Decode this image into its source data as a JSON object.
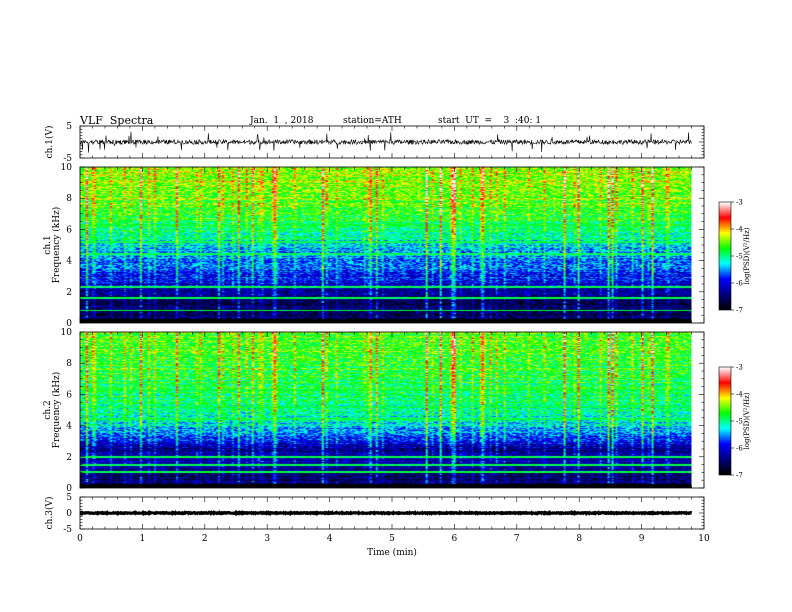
{
  "header": {
    "title": "VLF  Spectra",
    "date": "Jan.  1  , 2018",
    "station": "station=ATH",
    "start_ut": "start  UT  =    3  :40: 1"
  },
  "colors": {
    "waveform": "#000000",
    "axis": "#000000",
    "colormap": [
      "#000000",
      "#000080",
      "#0000ff",
      "#00ffff",
      "#00ff00",
      "#ffff00",
      "#ff0000",
      "#ffffff"
    ]
  },
  "chart_data": [
    {
      "type": "line",
      "panel": "ch1-waveform",
      "ylabel": "ch.1(V)",
      "ylim": [
        -5,
        5
      ],
      "yticks": [
        "5",
        "-5"
      ],
      "xlim": [
        0,
        10
      ],
      "data_extent_min": 9.8,
      "description_values": {
        "mean": 0,
        "typical_amplitude": 1.2,
        "spike_amplitude": 3
      }
    },
    {
      "type": "heatmap",
      "panel": "ch1-spectrogram",
      "ylabel": "ch.1\nFrequency  (kHz)",
      "ylim": [
        0,
        10
      ],
      "yticks": [
        "0",
        "2",
        "4",
        "6",
        "8",
        "10"
      ],
      "xlim": [
        0,
        10
      ],
      "data_extent_min": 9.8,
      "colorbar": {
        "label": "log(PSD)(V²/Hz)",
        "ticks": [
          "-3",
          "-4",
          "-5",
          "-6",
          "-7"
        ],
        "range": [
          -7,
          -3
        ]
      },
      "profile_khz": [
        0,
        0.5,
        1,
        1.5,
        2,
        2.5,
        3,
        4,
        5,
        6,
        7,
        8,
        9,
        10
      ],
      "profile_logpsd": [
        -6.8,
        -6.6,
        -6.6,
        -6.5,
        -6.3,
        -6.1,
        -5.9,
        -5.6,
        -5.3,
        -5.0,
        -4.7,
        -4.5,
        -4.4,
        -4.4
      ],
      "tonal_lines_khz": [
        0.8,
        1.6,
        2.3,
        4.4,
        5.2,
        6.3,
        8.2
      ]
    },
    {
      "type": "heatmap",
      "panel": "ch2-spectrogram",
      "ylabel": "ch.2\nFrequency  (kHz)",
      "ylim": [
        0,
        10
      ],
      "yticks": [
        "0",
        "2",
        "4",
        "6",
        "8",
        "10"
      ],
      "xlim": [
        0,
        10
      ],
      "data_extent_min": 9.8,
      "colorbar": {
        "label": "log(PSD)(V²/Hz)",
        "ticks": [
          "-3",
          "-4",
          "-5",
          "-6",
          "-7"
        ],
        "range": [
          -7,
          -3
        ]
      },
      "profile_khz": [
        0,
        0.5,
        1,
        1.5,
        2,
        2.5,
        3,
        4,
        5,
        6,
        7,
        8,
        9,
        10
      ],
      "profile_logpsd": [
        -6.8,
        -6.4,
        -6.6,
        -6.3,
        -6.2,
        -6.4,
        -5.9,
        -5.3,
        -5.1,
        -4.9,
        -4.8,
        -4.7,
        -4.6,
        -4.6
      ],
      "tonal_lines_khz": [
        1.0,
        1.5,
        2.0,
        4.4,
        5.2,
        6.3
      ]
    },
    {
      "type": "line",
      "panel": "ch3-waveform",
      "ylabel": "ch.3(V)",
      "ylim": [
        -5,
        5
      ],
      "yticks": [
        "5",
        "0",
        "-5"
      ],
      "xlim": [
        0,
        10
      ],
      "data_extent_min": 9.8,
      "description_values": {
        "mean": 0,
        "typical_amplitude": 0.15
      }
    }
  ],
  "x_axis": {
    "label": "Time  (min)",
    "ticks": [
      "0",
      "1",
      "2",
      "3",
      "4",
      "5",
      "6",
      "7",
      "8",
      "9",
      "10"
    ]
  }
}
